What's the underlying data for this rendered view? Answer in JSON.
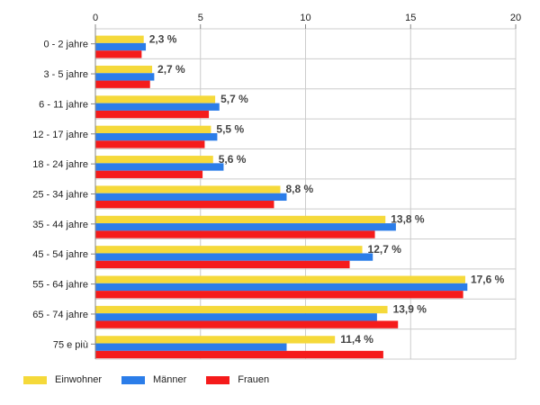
{
  "chart_data": {
    "type": "bar",
    "orientation": "horizontal",
    "categories": [
      "0 - 2 jahre",
      "3 - 5 jahre",
      "6 - 11 jahre",
      "12 - 17 jahre",
      "18 - 24 jahre",
      "25 - 34 jahre",
      "35 - 44 jahre",
      "45 - 54 jahre",
      "55 - 64 jahre",
      "65 - 74 jahre",
      "75 e più"
    ],
    "series": [
      {
        "name": "Einwohner",
        "color": "#f5d93a",
        "values": [
          2.3,
          2.7,
          5.7,
          5.5,
          5.6,
          8.8,
          13.8,
          12.7,
          17.6,
          13.9,
          11.4
        ]
      },
      {
        "name": "Männer",
        "color": "#2b7de9",
        "values": [
          2.4,
          2.8,
          5.9,
          5.8,
          6.1,
          9.1,
          14.3,
          13.2,
          17.7,
          13.4,
          9.1
        ]
      },
      {
        "name": "Frauen",
        "color": "#f51b1b",
        "values": [
          2.2,
          2.6,
          5.4,
          5.2,
          5.1,
          8.5,
          13.3,
          12.1,
          17.5,
          14.4,
          13.7
        ]
      }
    ],
    "data_labels": [
      "2,3 %",
      "2,7 %",
      "5,7 %",
      "5,5 %",
      "5,6 %",
      "8,8 %",
      "13,8 %",
      "12,7 %",
      "17,6 %",
      "13,9 %",
      "11,4 %"
    ],
    "xlim": [
      0,
      20
    ],
    "xticks": [
      0,
      5,
      10,
      15,
      20
    ],
    "x_axis_position": "top",
    "grid": true,
    "legend_position": "bottom-left"
  }
}
